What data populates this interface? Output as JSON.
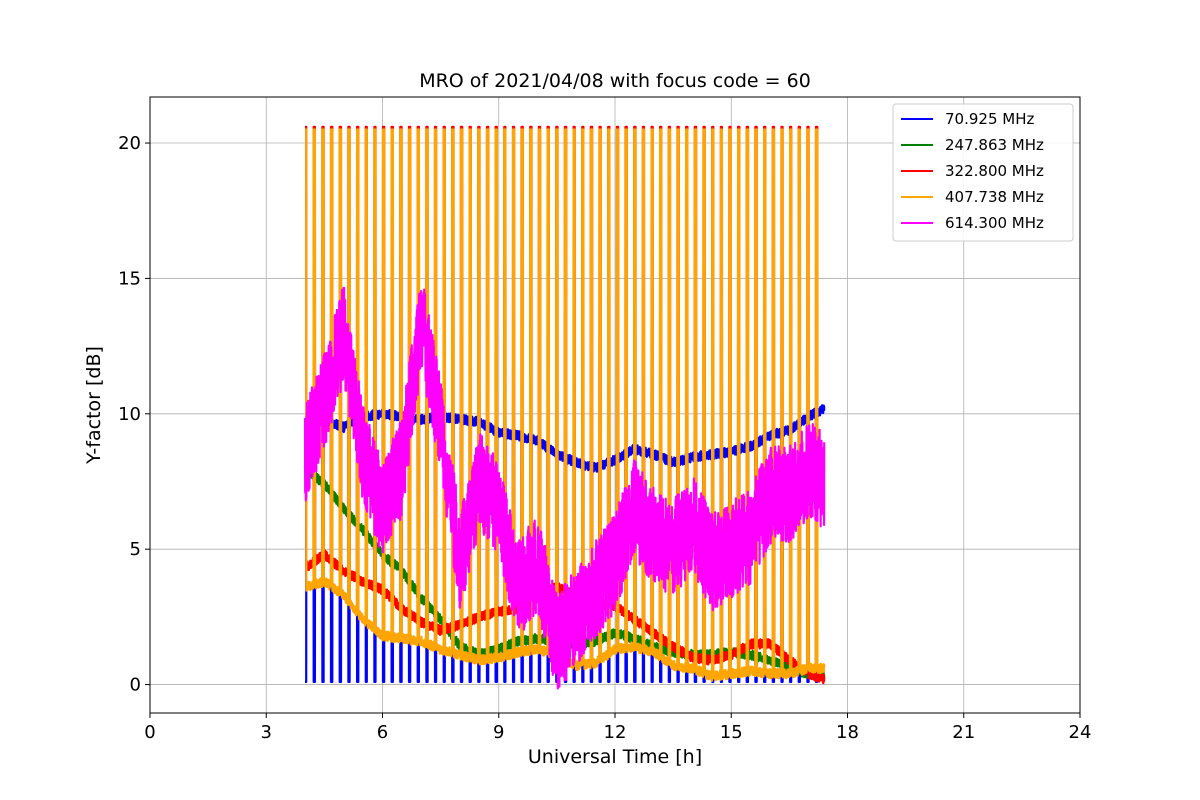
{
  "chart_data": {
    "type": "line",
    "title": "MRO of 2021/04/08 with focus code = 60",
    "xlabel": "Universal Time [h]",
    "ylabel": "Y-factor [dB]",
    "xlim": [
      0,
      24
    ],
    "ylim": [
      -1.05,
      21.7
    ],
    "xticks": [
      0,
      3,
      6,
      9,
      12,
      15,
      18,
      21,
      24
    ],
    "yticks": [
      0,
      5,
      10,
      15,
      20
    ],
    "grid": true,
    "legend_position": "top-right",
    "series": [
      {
        "name": "  70.925 MHz",
        "color": "#0000ff",
        "x": [
          4.0,
          4.5,
          5.0,
          5.5,
          6.0,
          6.5,
          7.0,
          7.5,
          8.0,
          8.5,
          9.0,
          9.5,
          10.0,
          10.5,
          11.0,
          11.5,
          12.0,
          12.5,
          13.0,
          13.5,
          14.0,
          14.5,
          15.0,
          15.5,
          16.0,
          16.5,
          17.0,
          17.4
        ],
        "y": [
          10.0,
          9.8,
          9.5,
          9.9,
          10.0,
          9.9,
          9.8,
          9.9,
          9.8,
          9.7,
          9.3,
          9.2,
          9.0,
          8.5,
          8.2,
          8.0,
          8.3,
          8.7,
          8.5,
          8.2,
          8.4,
          8.5,
          8.6,
          8.8,
          9.2,
          9.4,
          9.9,
          10.2
        ],
        "pulse_low": 0.1
      },
      {
        "name": "247.863 MHz",
        "color": "#008000",
        "x": [
          4.0,
          4.5,
          5.0,
          5.5,
          6.0,
          6.5,
          7.0,
          7.5,
          8.0,
          8.5,
          9.0,
          9.5,
          10.0,
          10.5,
          11.0,
          11.5,
          12.0,
          12.5,
          13.0,
          13.5,
          14.0,
          14.5,
          15.0,
          15.5,
          16.0,
          16.5,
          17.0,
          17.4
        ],
        "y": [
          8.0,
          7.4,
          6.5,
          5.7,
          4.8,
          4.2,
          3.2,
          2.4,
          1.4,
          1.1,
          1.3,
          1.6,
          1.7,
          1.6,
          1.5,
          1.6,
          1.9,
          1.7,
          1.4,
          1.2,
          1.1,
          1.1,
          1.2,
          1.1,
          0.9,
          0.6,
          0.4,
          0.3
        ]
      },
      {
        "name": "322.800 MHz",
        "color": "#ff0000",
        "x": [
          4.0,
          4.5,
          5.0,
          5.5,
          6.0,
          6.5,
          7.0,
          7.5,
          8.0,
          8.5,
          9.0,
          9.5,
          10.0,
          10.5,
          11.0,
          11.5,
          12.0,
          12.5,
          13.0,
          13.5,
          14.0,
          14.5,
          15.0,
          15.5,
          16.0,
          16.5,
          17.0,
          17.4
        ],
        "y": [
          4.3,
          4.8,
          4.2,
          3.8,
          3.5,
          2.8,
          2.3,
          2.0,
          2.2,
          2.5,
          2.7,
          2.8,
          3.4,
          3.6,
          3.3,
          3.0,
          2.9,
          2.4,
          1.9,
          1.4,
          1.0,
          0.9,
          1.1,
          1.5,
          1.5,
          0.9,
          0.4,
          0.2
        ],
        "pulse_high": 20.6
      },
      {
        "name": "407.738 MHz",
        "color": "#ffa500",
        "x": [
          4.0,
          4.5,
          5.0,
          5.5,
          6.0,
          6.5,
          7.0,
          7.5,
          8.0,
          8.5,
          9.0,
          9.5,
          10.0,
          10.5,
          11.0,
          11.5,
          12.0,
          12.5,
          13.0,
          13.5,
          14.0,
          14.5,
          15.0,
          15.5,
          16.0,
          16.5,
          17.0,
          17.4
        ],
        "y": [
          3.6,
          3.8,
          3.3,
          2.4,
          1.8,
          1.7,
          1.6,
          1.3,
          1.1,
          0.9,
          1.0,
          1.2,
          1.3,
          1.1,
          0.7,
          0.8,
          1.3,
          1.4,
          1.2,
          0.7,
          0.6,
          0.3,
          0.4,
          0.5,
          0.4,
          0.4,
          0.6,
          0.6
        ],
        "pulse_high": 20.5
      },
      {
        "name": "614.300 MHz",
        "color": "#ff00ff",
        "x": [
          4.0,
          4.5,
          5.0,
          5.5,
          6.0,
          6.5,
          7.0,
          7.5,
          8.0,
          8.5,
          9.0,
          9.5,
          10.0,
          10.5,
          11.0,
          11.5,
          12.0,
          12.5,
          13.0,
          13.5,
          14.0,
          14.5,
          15.0,
          15.5,
          16.0,
          16.5,
          17.0,
          17.4
        ],
        "y": [
          8.5,
          10.5,
          13.0,
          8.5,
          6.5,
          8.0,
          13.5,
          9.5,
          4.5,
          7.5,
          6.5,
          3.5,
          4.5,
          1.5,
          2.5,
          3.5,
          4.5,
          6.5,
          5.5,
          5.0,
          6.0,
          4.5,
          5.0,
          5.5,
          7.0,
          7.0,
          8.0,
          7.5
        ],
        "noise": 1.8
      }
    ]
  }
}
